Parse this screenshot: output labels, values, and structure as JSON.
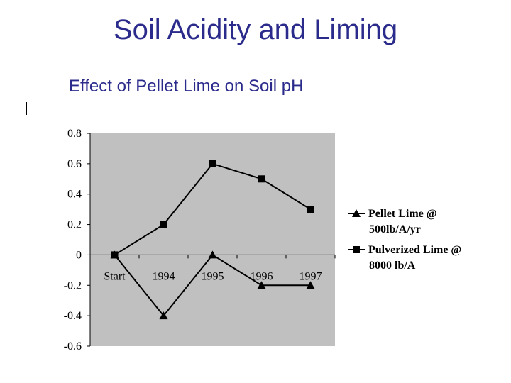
{
  "slide": {
    "title": "Soil Acidity and Liming"
  },
  "chart_data": {
    "type": "line",
    "title": "Effect of Pellet Lime on Soil pH",
    "categories": [
      "Start",
      "1994",
      "1995",
      "1996",
      "1997"
    ],
    "series": [
      {
        "name": "Pellet Lime @ 500lb/A/yr",
        "marker": "triangle",
        "values": [
          0,
          -0.4,
          0,
          -0.2,
          -0.2
        ]
      },
      {
        "name": "Pulverized Lime @ 8000 lb/A",
        "marker": "square",
        "values": [
          0,
          0.2,
          0.6,
          0.5,
          0.3
        ]
      }
    ],
    "ylim": [
      -0.6,
      0.8
    ],
    "yticks": [
      0.8,
      0.6,
      0.4,
      0.2,
      0,
      -0.2,
      -0.4,
      -0.6
    ],
    "ytick_labels": [
      "0.8",
      "0.6",
      "0.4",
      "0.2",
      "0",
      "-0.2",
      "-0.4",
      "-0.6"
    ],
    "legend_lines": [
      [
        "Pellet Lime @",
        "500lb/A/yr"
      ],
      [
        "Pulverized Lime @",
        "8000 lb/A"
      ]
    ],
    "grid": false,
    "legend_position": "right",
    "plot_background": "#c0c0c0",
    "line_color": "#000000"
  }
}
